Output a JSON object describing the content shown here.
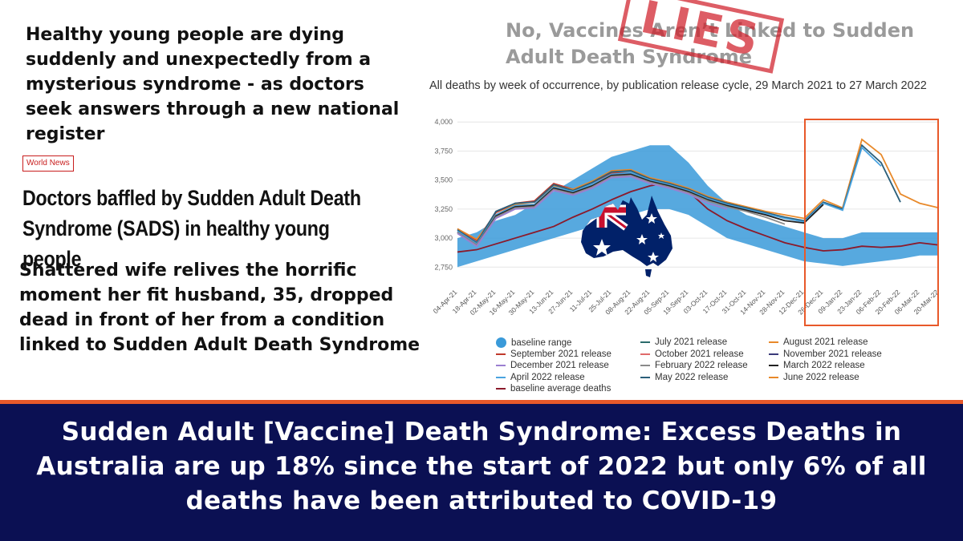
{
  "article": {
    "headline1": "Healthy young people are dying suddenly and unexpectedly from a mysterious syndrome - as doctors seek answers through a new national register",
    "tag": "World News",
    "headline2": "Doctors baffled by Sudden Adult Death Syndrome (SADS) in healthy young people",
    "headline3": "Shattered wife relives the horrific moment her fit husband, 35, dropped dead in front of her from a condition linked to Sudden Adult Death Syndrome"
  },
  "overlay": {
    "title": "No, Vaccines Aren’t Linked to Sudden Adult Death Syndrome",
    "stamp": "LIES",
    "stamp_color": "#d0202a"
  },
  "chart_data": {
    "type": "line",
    "title": "All deaths by week of occurrence, by publication release cycle, 29 March 2021 to 27 March 2022",
    "ylim": [
      2600,
      4050
    ],
    "yticks": [
      "2,750",
      "3,000",
      "3,250",
      "3,500",
      "3,750",
      "4,000"
    ],
    "ytick_values": [
      2750,
      3000,
      3250,
      3500,
      3750,
      4000
    ],
    "x_labels": [
      "04-Apr-21",
      "18-Apr-21",
      "02-May-21",
      "16-May-21",
      "30-May-21",
      "13-Jun-21",
      "27-Jun-21",
      "11-Jul-21",
      "25-Jul-21",
      "08-Aug-21",
      "22-Aug-21",
      "05-Sep-21",
      "19-Sep-21",
      "03-Oct-21",
      "17-Oct-21",
      "31-Oct-21",
      "14-Nov-21",
      "28-Nov-21",
      "12-Dec-21",
      "26-Dec-21",
      "09-Jan-22",
      "23-Jan-22",
      "06-Feb-22",
      "20-Feb-22",
      "06-Mar-22",
      "20-Mar-22"
    ],
    "grid": true,
    "highlight_box": "Jan 2022 to Mar 2022",
    "baseline_range": {
      "low": [
        2750,
        2800,
        2850,
        2900,
        2950,
        3000,
        3050,
        3100,
        3150,
        3200,
        3250,
        3250,
        3200,
        3100,
        3000,
        2950,
        2900,
        2850,
        2800,
        2780,
        2760,
        2780,
        2800,
        2820,
        2850,
        2850
      ],
      "high": [
        3000,
        3050,
        3150,
        3200,
        3300,
        3400,
        3500,
        3600,
        3700,
        3750,
        3800,
        3800,
        3650,
        3450,
        3300,
        3200,
        3150,
        3100,
        3050,
        3000,
        3000,
        3050,
        3050,
        3050,
        3050,
        3050
      ]
    },
    "series": [
      {
        "name": "baseline average deaths",
        "color": "#8b1a2b",
        "values": [
          2880,
          2900,
          2950,
          3000,
          3050,
          3100,
          3180,
          3250,
          3330,
          3400,
          3450,
          3480,
          3400,
          3250,
          3150,
          3080,
          3020,
          2960,
          2920,
          2890,
          2900,
          2930,
          2920,
          2930,
          2960,
          2940
        ]
      },
      {
        "name": "September 2021 release",
        "color": "#c0392b",
        "values": [
          3080,
          2980,
          3220,
          3300,
          3320,
          3470,
          3420,
          3480,
          3560,
          3560,
          3500,
          null,
          null,
          null,
          null,
          null,
          null,
          null,
          null,
          null,
          null,
          null,
          null,
          null,
          null,
          null
        ]
      },
      {
        "name": "June 2022 release",
        "color": "#e8892a",
        "values": [
          3080,
          2990,
          3200,
          3290,
          3290,
          3450,
          3420,
          3490,
          3580,
          3590,
          3520,
          3480,
          3430,
          3360,
          3310,
          3270,
          3230,
          3200,
          3170,
          3330,
          3260,
          3850,
          3720,
          3380,
          3300,
          3260
        ]
      },
      {
        "name": "May 2022 release",
        "color": "#2b5f7a",
        "values": [
          3070,
          2960,
          3230,
          3300,
          3310,
          3460,
          3410,
          3480,
          3570,
          3580,
          3510,
          3470,
          3420,
          3350,
          3300,
          3260,
          3220,
          3180,
          3150,
          3310,
          3250,
          3800,
          3650,
          3310,
          null,
          null
        ]
      },
      {
        "name": "April 2022 release",
        "color": "#4aa3df",
        "values": [
          3060,
          2950,
          3200,
          3280,
          3290,
          3440,
          3400,
          3460,
          3550,
          3560,
          3500,
          3460,
          3410,
          3340,
          3290,
          3250,
          3210,
          3170,
          3140,
          3300,
          3240,
          3780,
          3620,
          null,
          null,
          null
        ]
      },
      {
        "name": "March 2022 release",
        "color": "#222222",
        "values": [
          3050,
          2940,
          3190,
          3270,
          3280,
          3430,
          3390,
          3450,
          3540,
          3550,
          3490,
          3450,
          3400,
          3330,
          3280,
          3240,
          3200,
          3150,
          3130,
          3290,
          null,
          null,
          null,
          null,
          null,
          null
        ]
      },
      {
        "name": "February 2022 release",
        "color": "#8a8a8a",
        "values": [
          3050,
          2940,
          3180,
          3260,
          3270,
          3420,
          3380,
          3440,
          3530,
          3540,
          3480,
          3440,
          3390,
          3320,
          3270,
          3230,
          3180,
          3120,
          null,
          null,
          null,
          null,
          null,
          null,
          null,
          null
        ]
      },
      {
        "name": "December 2021 release",
        "color": "#9b7fd1",
        "values": [
          3040,
          2930,
          3170,
          3250,
          3260,
          3410,
          3370,
          3430,
          3520,
          3530,
          3470,
          3430,
          3380,
          3300,
          3250,
          null,
          null,
          null,
          null,
          null,
          null,
          null,
          null,
          null,
          null,
          null
        ]
      }
    ],
    "legend": [
      {
        "name": "baseline range",
        "color": "#3a9ad9",
        "kind": "dot"
      },
      {
        "name": "July 2021 release",
        "color": "#2b6b6b",
        "kind": "line"
      },
      {
        "name": "August 2021 release",
        "color": "#e8892a",
        "kind": "line"
      },
      {
        "name": "September 2021 release",
        "color": "#c0392b",
        "kind": "line"
      },
      {
        "name": "October 2021 release",
        "color": "#e06a6a",
        "kind": "line"
      },
      {
        "name": "November 2021 release",
        "color": "#3a3a7a",
        "kind": "line"
      },
      {
        "name": "December 2021 release",
        "color": "#9b7fd1",
        "kind": "line"
      },
      {
        "name": "February 2022 release",
        "color": "#8a8a8a",
        "kind": "line"
      },
      {
        "name": "March 2022 release",
        "color": "#222222",
        "kind": "line"
      },
      {
        "name": "April 2022 release",
        "color": "#4aa3df",
        "kind": "line"
      },
      {
        "name": "May 2022 release",
        "color": "#2b5f7a",
        "kind": "line"
      },
      {
        "name": "June 2022 release",
        "color": "#e8892a",
        "kind": "line"
      },
      {
        "name": "baseline average deaths",
        "color": "#8b1a2b",
        "kind": "line"
      }
    ]
  },
  "banner": {
    "text": "Sudden Adult [Vaccine] Death Syndrome: Excess Deaths in Australia are up 18% since the start of 2022 but only 6% of all deaths have been attributed to COVID-19",
    "background": "#0b1053",
    "accent": "#e8592a"
  }
}
